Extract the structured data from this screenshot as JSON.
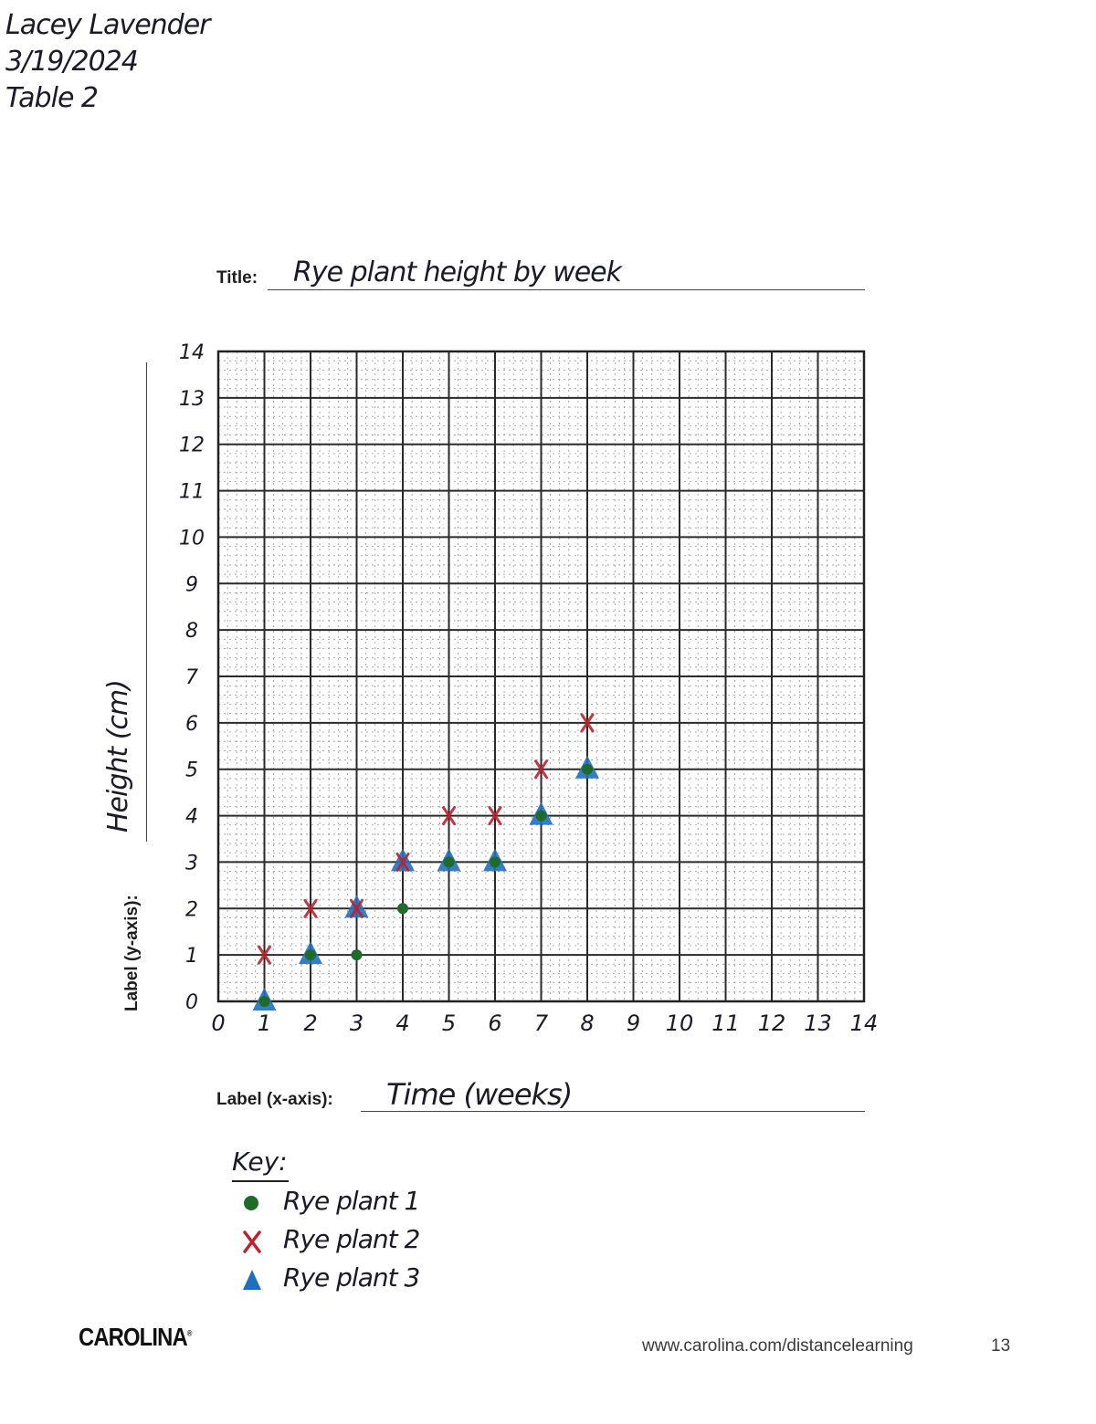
{
  "header": {
    "name": "Lacey Lavender",
    "date": "3/19/2024",
    "table": "Table 2"
  },
  "form": {
    "title_label": "Title:",
    "title_value": "Rye plant height by week",
    "ylabel_label": "Label (y-axis):",
    "ylabel_value": "Height (cm)",
    "xlabel_label": "Label (x-axis):",
    "xlabel_value": "Time (weeks)"
  },
  "legend": {
    "title": "Key:",
    "items": [
      {
        "label": "Rye plant 1",
        "marker": "dot",
        "color": "#1f6b2a"
      },
      {
        "label": "Rye plant 2",
        "marker": "x",
        "color": "#c0202a"
      },
      {
        "label": "Rye plant 3",
        "marker": "triangle",
        "color": "#1f6fc0"
      }
    ]
  },
  "footer": {
    "logo": "CAROLINA",
    "url": "www.carolina.com/distancelearning",
    "page_number": "13"
  },
  "chart_data": {
    "type": "scatter",
    "title": "Rye plant height by week",
    "xlabel": "Time (weeks)",
    "ylabel": "Height (cm)",
    "xlim": [
      0,
      14
    ],
    "ylim": [
      0,
      14
    ],
    "x_ticks": [
      0,
      1,
      2,
      3,
      4,
      5,
      6,
      7,
      8,
      9,
      10,
      11,
      12,
      13,
      14
    ],
    "y_ticks": [
      0,
      1,
      2,
      3,
      4,
      5,
      6,
      7,
      8,
      9,
      10,
      11,
      12,
      13,
      14
    ],
    "grid": true,
    "legend_position": "below chart",
    "x": [
      1,
      2,
      3,
      4,
      5,
      6,
      7,
      8
    ],
    "series": [
      {
        "name": "Rye plant 1",
        "marker": "dot",
        "color": "#1f6b2a",
        "values": [
          0,
          1,
          1,
          2,
          3,
          3,
          4,
          5
        ]
      },
      {
        "name": "Rye plant 2",
        "marker": "x",
        "color": "#c0202a",
        "values": [
          1,
          2,
          2,
          3,
          4,
          4,
          5,
          6
        ]
      },
      {
        "name": "Rye plant 3",
        "marker": "triangle",
        "color": "#1f6fc0",
        "values": [
          0,
          1,
          2,
          3,
          3,
          3,
          4,
          5
        ]
      }
    ]
  }
}
